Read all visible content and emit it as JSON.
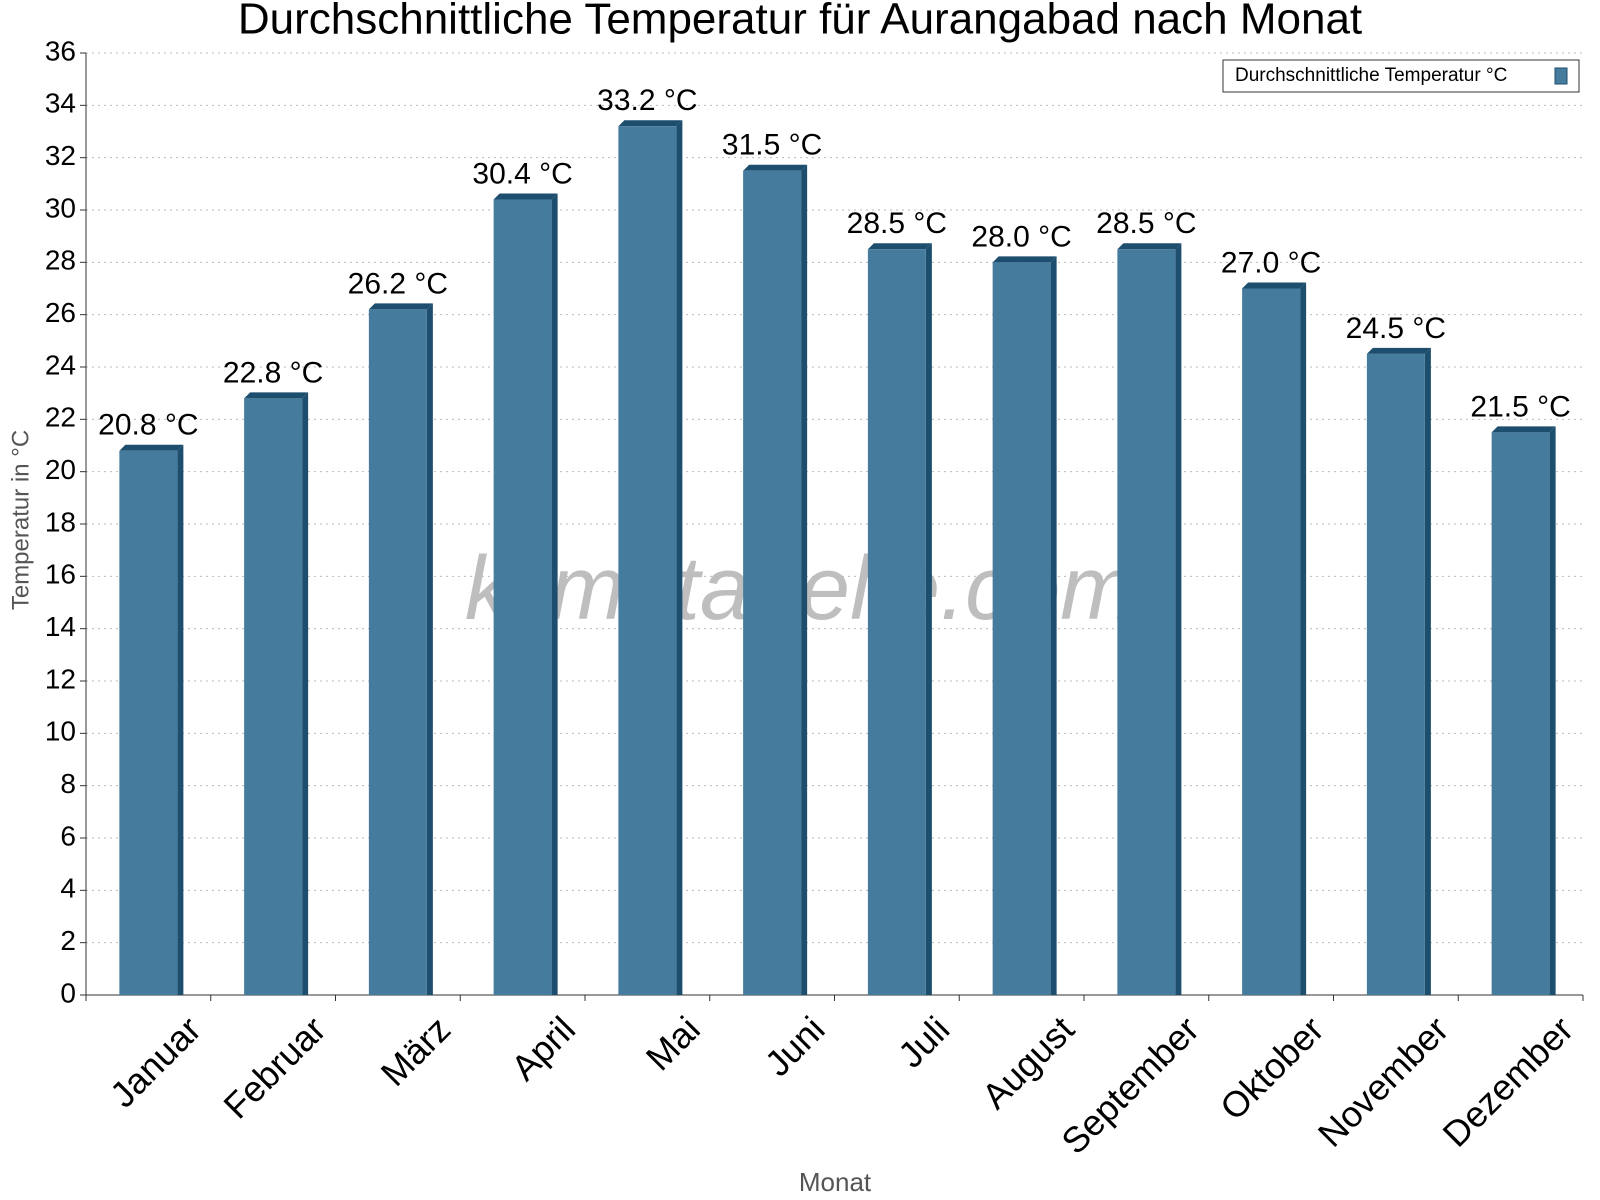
{
  "chart_data": {
    "type": "bar",
    "title": "Durchschnittliche Temperatur für Aurangabad nach Monat",
    "x_label": "Monat",
    "y_label": "Temperatur in °C",
    "watermark": "klimatabelle.com",
    "categories": [
      "Januar",
      "Februar",
      "März",
      "April",
      "Mai",
      "Juni",
      "Juli",
      "August",
      "September",
      "Oktober",
      "November",
      "Dezember"
    ],
    "series": [
      {
        "name": "Durchschnittliche Temperatur °C",
        "color": "#457b9d",
        "values": [
          20.8,
          22.8,
          26.2,
          30.4,
          33.2,
          31.5,
          28.5,
          28.0,
          28.5,
          27.0,
          24.5,
          21.5
        ],
        "value_labels": [
          "20.8 °C",
          "22.8 °C",
          "26.2 °C",
          "30.4 °C",
          "33.2 °C",
          "31.5 °C",
          "28.5 °C",
          "28.0 °C",
          "28.5 °C",
          "27.0 °C",
          "24.5 °C",
          "21.5 °C"
        ]
      }
    ],
    "ylim": [
      0,
      36
    ],
    "yticks": [
      0,
      2,
      4,
      6,
      8,
      10,
      12,
      14,
      16,
      18,
      20,
      22,
      24,
      26,
      28,
      30,
      32,
      34,
      36
    ],
    "grid": true,
    "legend": "top-right"
  }
}
